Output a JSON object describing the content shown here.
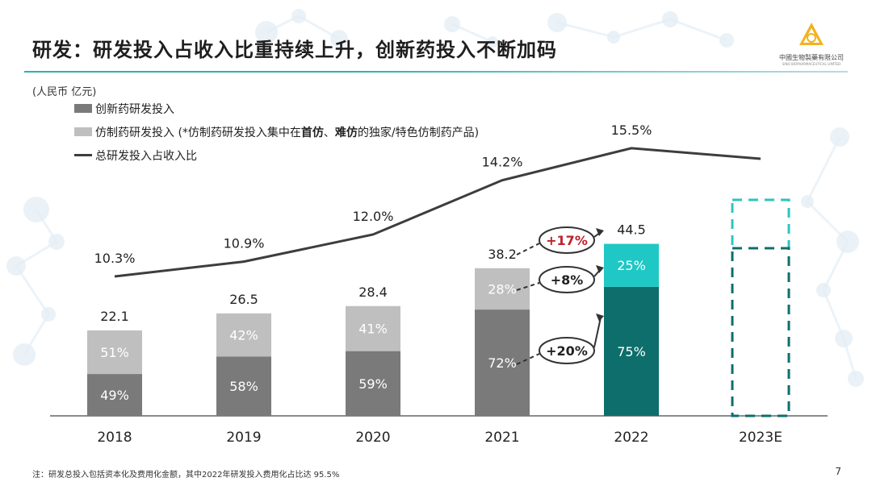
{
  "slide": {
    "title": "研发：研发投入占收入比重持续上升，创新药投入不断加码",
    "unit_label": "(人民币 亿元)",
    "footnote": "注：研发总投入包括资本化及费用化金额，其中2022年研发投入费用化占比达 95.5%",
    "page_number": "7"
  },
  "logo": {
    "name_cn": "中國生物製藥有限公司",
    "name_en": "SINO BIOPHARMACEUTICAL LIMITED"
  },
  "legend": {
    "innovative": "创新药研发投入",
    "generic_prefix": "仿制药研发投入 (*仿制药研发投入集中在",
    "generic_bold1": "首仿",
    "generic_sep": "、",
    "generic_bold2": "难仿",
    "generic_suffix": "的独家/特色仿制药产品)",
    "ratio": "总研发投入占收入比"
  },
  "colors": {
    "innovative": "#7a7a7a",
    "generic": "#bfbfbf",
    "innovative_2022": "#0e6e6b",
    "generic_2022": "#1fc8c4",
    "ratio_line": "#3d3d3d",
    "forecast_dash": "#2ec4c0",
    "forecast_dash_dark": "#0e6e6b",
    "accent_red": "#c0202a"
  },
  "chart_data": {
    "type": "bar",
    "stacked": true,
    "categories": [
      "2018",
      "2019",
      "2020",
      "2021",
      "2022",
      "2023E"
    ],
    "totals": [
      22.1,
      26.5,
      28.4,
      38.2,
      44.5,
      null
    ],
    "total_labels": [
      "22.1",
      "26.5",
      "28.4",
      "38.2",
      "44.5",
      ""
    ],
    "series": [
      {
        "name": "创新药研发投入",
        "share_pct": [
          49,
          58,
          59,
          72,
          75,
          null
        ],
        "labels": [
          "49%",
          "58%",
          "59%",
          "72%",
          "75%",
          ""
        ]
      },
      {
        "name": "仿制药研发投入",
        "share_pct": [
          51,
          42,
          41,
          28,
          25,
          null
        ],
        "labels": [
          "51%",
          "42%",
          "41%",
          "28%",
          "25%",
          ""
        ]
      }
    ],
    "line": {
      "name": "总研发投入占收入比",
      "values_pct": [
        10.3,
        10.9,
        12.0,
        14.2,
        15.5,
        null
      ],
      "labels": [
        "10.3%",
        "10.9%",
        "12.0%",
        "14.2%",
        "15.5%",
        ""
      ],
      "trend_continues_to_2023E": true
    },
    "growth_callouts": [
      {
        "label": "+17%",
        "metric": "total",
        "from": "2021",
        "to": "2022",
        "highlight": true
      },
      {
        "label": "+8%",
        "metric": "generic",
        "from": "2021",
        "to": "2022",
        "highlight": false
      },
      {
        "label": "+20%",
        "metric": "innovative",
        "from": "2021",
        "to": "2022",
        "highlight": false
      }
    ],
    "forecast": {
      "category": "2023E",
      "style": "dashed outline",
      "upper_segment_share_pct": 25
    },
    "y_range": [
      0,
      55
    ]
  }
}
